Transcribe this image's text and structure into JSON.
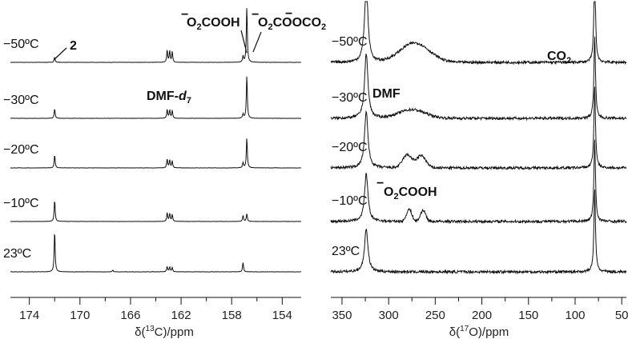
{
  "chart_data": [
    {
      "type": "line",
      "panel": "left",
      "xlabel_parts": {
        "prefix": "δ(",
        "sup": "13",
        "suffix": "C)/ppm"
      },
      "xlim": [
        175.5,
        152.5
      ],
      "xticks": [
        174,
        170,
        166,
        162,
        158,
        154
      ],
      "xtick_labels": [
        "174",
        "170",
        "166",
        "162",
        "158",
        "154"
      ],
      "series": [
        {
          "label": "−50ºC",
          "peaks": [
            [
              172.0,
              0.12
            ],
            [
              163.1,
              0.28
            ],
            [
              162.9,
              0.26
            ],
            [
              162.7,
              0.24
            ],
            [
              157.1,
              0.14
            ],
            [
              156.8,
              1.3
            ]
          ]
        },
        {
          "label": "−30ºC",
          "peaks": [
            [
              172.0,
              0.22
            ],
            [
              163.1,
              0.2
            ],
            [
              162.9,
              0.19
            ],
            [
              162.7,
              0.18
            ],
            [
              157.1,
              0.1
            ],
            [
              156.8,
              1.0
            ]
          ]
        },
        {
          "label": "−20ºC",
          "peaks": [
            [
              172.0,
              0.3
            ],
            [
              163.1,
              0.2
            ],
            [
              162.9,
              0.18
            ],
            [
              162.7,
              0.16
            ],
            [
              157.1,
              0.12
            ],
            [
              156.8,
              0.7
            ]
          ]
        },
        {
          "label": "−10ºC",
          "peaks": [
            [
              172.0,
              0.5
            ],
            [
              163.1,
              0.2
            ],
            [
              162.9,
              0.18
            ],
            [
              162.7,
              0.16
            ],
            [
              157.1,
              0.14
            ],
            [
              156.8,
              0.18
            ]
          ]
        },
        {
          "label": "23ºC",
          "peaks": [
            [
              172.0,
              0.95
            ],
            [
              167.4,
              0.04
            ],
            [
              163.1,
              0.12
            ],
            [
              162.9,
              0.11
            ],
            [
              162.7,
              0.1
            ],
            [
              157.1,
              0.22
            ]
          ]
        }
      ],
      "annotations": [
        {
          "kind": "plain",
          "text": "2"
        },
        {
          "kind": "dmf",
          "text": "DMF-",
          "italic": "d",
          "sub": "7"
        },
        {
          "kind": "anion",
          "bar": "−",
          "body1": "O",
          "sub": "2",
          "body2": "COOH"
        },
        {
          "kind": "anion2",
          "bar": "−",
          "body1": "O",
          "sub": "2",
          "body2": "COOCO",
          "sub2": "2",
          "bar2": "−"
        }
      ]
    },
    {
      "type": "line",
      "panel": "right",
      "xlabel_parts": {
        "prefix": "δ(",
        "sup": "17",
        "suffix": "O)/ppm"
      },
      "xlim": [
        362,
        45
      ],
      "xticks": [
        350,
        300,
        250,
        200,
        150,
        100,
        50
      ],
      "xtick_labels": [
        "350",
        "300",
        "250",
        "200",
        "150",
        "100",
        "50"
      ],
      "series": [
        {
          "label": "−50ºC",
          "dmf": 1.8,
          "co2": 2.2,
          "broad": [
            [
              272,
              0.45,
              22
            ]
          ]
        },
        {
          "label": "−30ºC",
          "dmf": 1.5,
          "co2": 1.9,
          "broad": [
            [
              275,
              0.2,
              20
            ]
          ]
        },
        {
          "label": "−20ºC",
          "dmf": 1.3,
          "co2": 1.9,
          "broad": [
            [
              280,
              0.3,
              7
            ],
            [
              265,
              0.28,
              7
            ]
          ]
        },
        {
          "label": "−10ºC",
          "dmf": 1.1,
          "co2": 1.9,
          "broad": [
            [
              278,
              0.28,
              4
            ],
            [
              263,
              0.26,
              4
            ]
          ]
        },
        {
          "label": "23ºC",
          "dmf": 1.0,
          "co2": 1.9,
          "broad": []
        }
      ],
      "annotations": [
        {
          "kind": "co2",
          "body": "CO",
          "sub": "2"
        },
        {
          "kind": "plain",
          "text": "DMF"
        },
        {
          "kind": "anion",
          "bar": "−",
          "body1": "O",
          "sub": "2",
          "body2": "COOH"
        }
      ]
    }
  ]
}
